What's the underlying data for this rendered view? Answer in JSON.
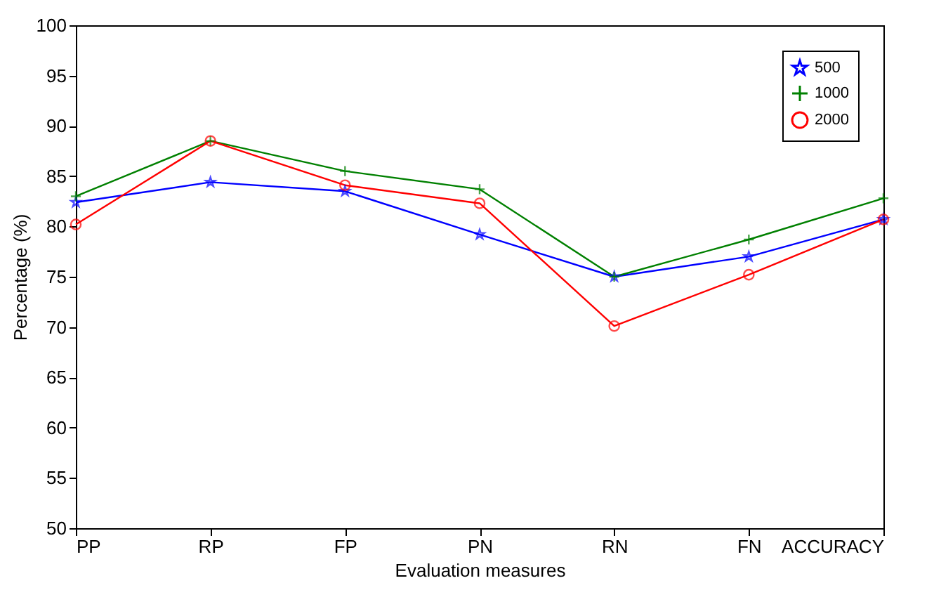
{
  "chart_data": {
    "type": "line",
    "xlabel": "Evaluation measures",
    "ylabel": "Percentage (%)",
    "categories": [
      "PP",
      "RP",
      "FP",
      "PN",
      "RN",
      "FN",
      "ACCURACY"
    ],
    "series": [
      {
        "name": "500",
        "color": "#0000ff",
        "marker": "star",
        "values": [
          82.4,
          84.4,
          83.5,
          79.2,
          75.0,
          77.0,
          80.7
        ]
      },
      {
        "name": "1000",
        "color": "#008000",
        "marker": "cross",
        "values": [
          83.0,
          88.5,
          85.5,
          83.7,
          75.0,
          78.7,
          82.8
        ]
      },
      {
        "name": "2000",
        "color": "#ff0000",
        "marker": "circle",
        "values": [
          80.2,
          88.5,
          84.1,
          82.3,
          70.1,
          75.2,
          80.7
        ]
      }
    ],
    "ylim": [
      50,
      100
    ],
    "yticks": [
      50,
      55,
      60,
      65,
      70,
      75,
      80,
      85,
      90,
      95,
      100
    ],
    "grid": false,
    "legend": "top right",
    "line_style": "solid"
  }
}
